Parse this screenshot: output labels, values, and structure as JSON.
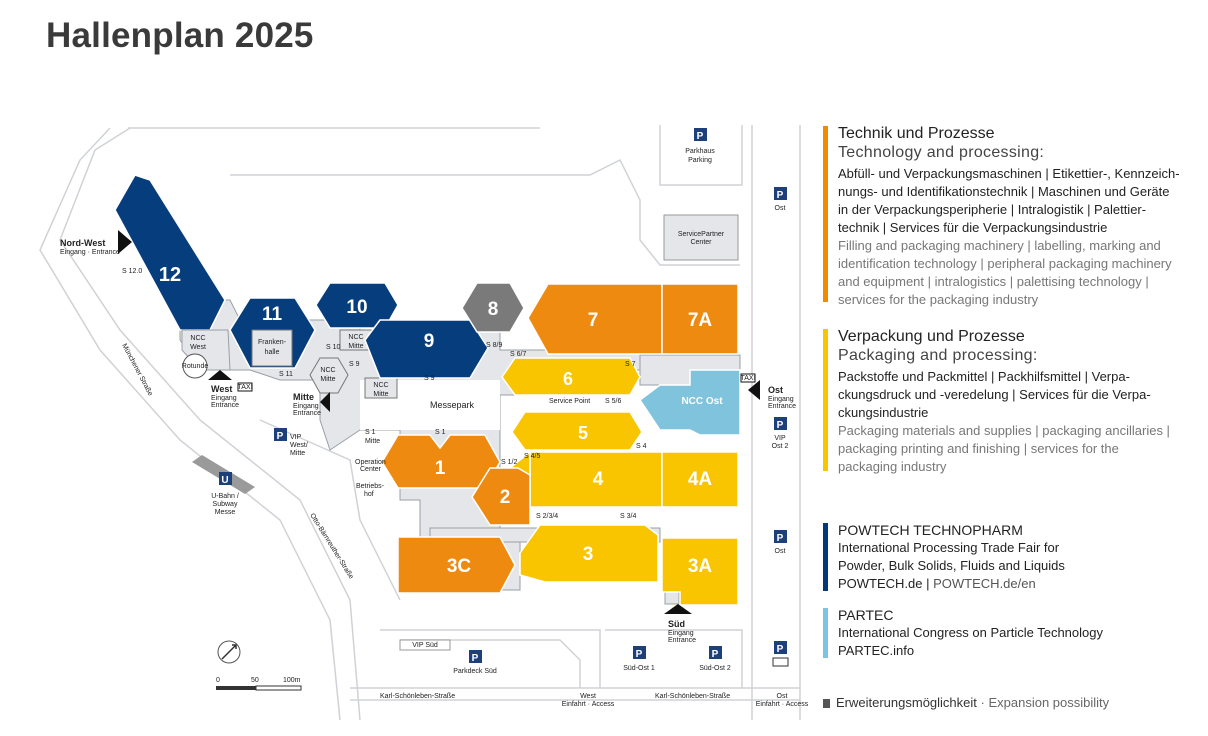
{
  "page": {
    "title": "Hallenplan 2025"
  },
  "colors": {
    "technik": "#f18a00",
    "verpackung": "#f7c600",
    "powtech": "#003a78",
    "partec": "#7cc4df",
    "hall_orange": "#ef8a11",
    "hall_yellow": "#f8c500",
    "hall_blue": "#063d7d",
    "hall_lightblue": "#7fc3dc",
    "hall_gray": "#7a7a7a",
    "corridor": "#e4e6ea"
  },
  "halls": {
    "h12": "12",
    "h11": "11",
    "h10": "10",
    "h9": "9",
    "h8": "8",
    "h7": "7",
    "h7a": "7A",
    "h6": "6",
    "h5": "5",
    "h4": "4",
    "h4a": "4A",
    "h1": "1",
    "h2": "2",
    "h3": "3",
    "h3a": "3A",
    "h3c": "3C",
    "nccost": "NCC Ost"
  },
  "map_labels": {
    "parkhaus": "Parkhaus",
    "parking": "Parking",
    "ost": "Ost",
    "servicepartner_1": "ServicePartner",
    "servicepartner_2": "Center",
    "nordwest": "Nord-West",
    "nordwest_sub": "Eingang · Entrance",
    "s12": "S 12.0",
    "ncc_west_1": "NCC",
    "ncc_west_2": "West",
    "rotunde": "Rotunde",
    "west": "West",
    "eingang": "Eingang",
    "entrance": "Entrance",
    "franken_1": "Franken-",
    "franken_2": "halle",
    "s11": "S 11",
    "ncc_mitte_1": "NCC",
    "ncc_mitte_2": "Mitte",
    "s10": "S 10",
    "s9": "S 9",
    "s89": "S 8/9",
    "s67": "S 6/7",
    "s7": "S 7",
    "mitte": "Mitte",
    "s1": "S 1",
    "mitte_box": "Mitte",
    "operation_1": "Operation",
    "operation_2": "Center",
    "messepark": "Messepark",
    "service_point": "Service Point",
    "s56": "S 5/6",
    "s4": "S 4",
    "s45": "S 4/5",
    "s12b": "S 1/2",
    "s234": "S 2/3/4",
    "s34": "S 3/4",
    "taxi": "TAXI",
    "vip_ost_1": "VIP",
    "vip_ost_2": "Ost 2",
    "vip_west_1": "VIP",
    "vip_west_2": "West/",
    "vip_west_3": "Mitte",
    "ubahn_1": "U-Bahn /",
    "ubahn_2": "Subway",
    "ubahn_3": "Messe",
    "u": "U",
    "betriebshof_1": "Betriebs-",
    "betriebshof_2": "hof",
    "muenchener": "Münchener Straße",
    "otto": "Otto-Bärnreuther-Straße",
    "sued": "Süd",
    "vip_sued": "VIP Süd",
    "parkdeck_sued": "Parkdeck Süd",
    "sued_ost_1": "Süd-Ost 1",
    "sued_ost_2": "Süd-Ost 2",
    "karl": "Karl-Schönleben-Straße",
    "west_einfahrt_1": "West",
    "west_einfahrt_2": "Einfahrt · Access",
    "ost_einfahrt_1": "Ost",
    "ost_einfahrt_2": "Einfahrt · Access",
    "scale_0": "0",
    "scale_50": "50",
    "scale_100": "100m",
    "p": "P"
  },
  "legend": {
    "technik": {
      "title": "Technik und Prozesse",
      "subtitle": "Technology and processing:",
      "de": [
        "Abfüll- und Verpackungsmaschinen | Etikettier-, Kennzeich-",
        "nungs- und Identifikationstechnik | Maschinen und Geräte",
        "in der Verpackungsperipherie | Intralogistik | Palettier-",
        "technik | Services für die Verpackungsindustrie"
      ],
      "en": [
        "Filling and packaging machinery | labelling, marking and",
        "identification technology | peripheral packaging machinery",
        "and equipment | intralogistics | palettising technology |",
        "services for the packaging industry"
      ]
    },
    "verpackung": {
      "title": "Verpackung und Prozesse",
      "subtitle": "Packaging and processing:",
      "de": [
        "Packstoffe und Packmittel | Packhilfsmittel | Verpa-",
        "ckungsdruck und -veredelung | Services für die Verpa-",
        "ckungsindustrie"
      ],
      "en": [
        "Packaging materials and supplies | packaging ancillaries |",
        "packaging printing and finishing | services for the",
        "packaging industry"
      ]
    },
    "powtech": {
      "name": "POWTECH TECHNOPHARM",
      "line1": "International Processing Trade Fair for",
      "line2": "Powder, Bulk Solids, Fluids and Liquids",
      "link1": "POWTECH.de",
      "sep": " | ",
      "link2": "POWTECH.de/en"
    },
    "partec": {
      "name": "PARTEC",
      "line1": "International Congress on Particle Technology",
      "link": "PARTEC.info"
    },
    "expansion": {
      "de": "Erweiterungsmöglichkeit",
      "sep": " · ",
      "en": "Expansion possibility"
    }
  }
}
